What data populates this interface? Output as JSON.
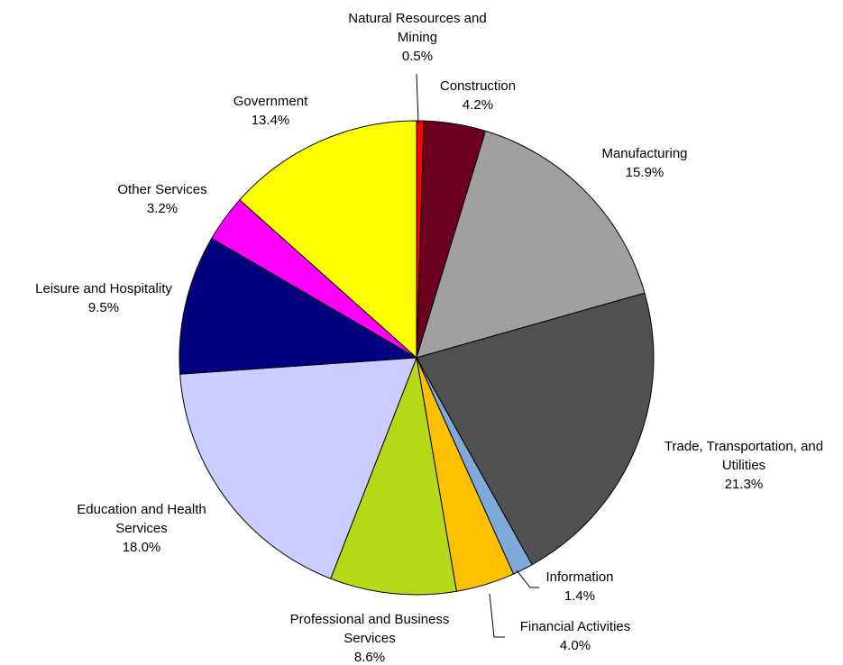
{
  "chart_data": {
    "type": "pie",
    "categories": [
      "Natural Resources and Mining",
      "Construction",
      "Manufacturing",
      "Trade, Transportation, and Utilities",
      "Information",
      "Financial Activities",
      "Professional and Business Services",
      "Education and Health Services",
      "Leisure and Hospitality",
      "Other Services",
      "Government"
    ],
    "values": [
      0.5,
      4.2,
      15.9,
      21.3,
      1.4,
      4.0,
      8.6,
      18.0,
      9.5,
      3.2,
      13.4
    ],
    "value_labels": [
      "0.5%",
      "4.2%",
      "15.9%",
      "21.3%",
      "1.4%",
      "4.0%",
      "8.6%",
      "18.0%",
      "9.5%",
      "3.2%",
      "13.4%"
    ],
    "colors": [
      "#ff0000",
      "#6b0021",
      "#a0a0a0",
      "#505050",
      "#7fa9d9",
      "#ffc000",
      "#b5d916",
      "#ccccff",
      "#000080",
      "#ff00ff",
      "#ffff00"
    ]
  }
}
